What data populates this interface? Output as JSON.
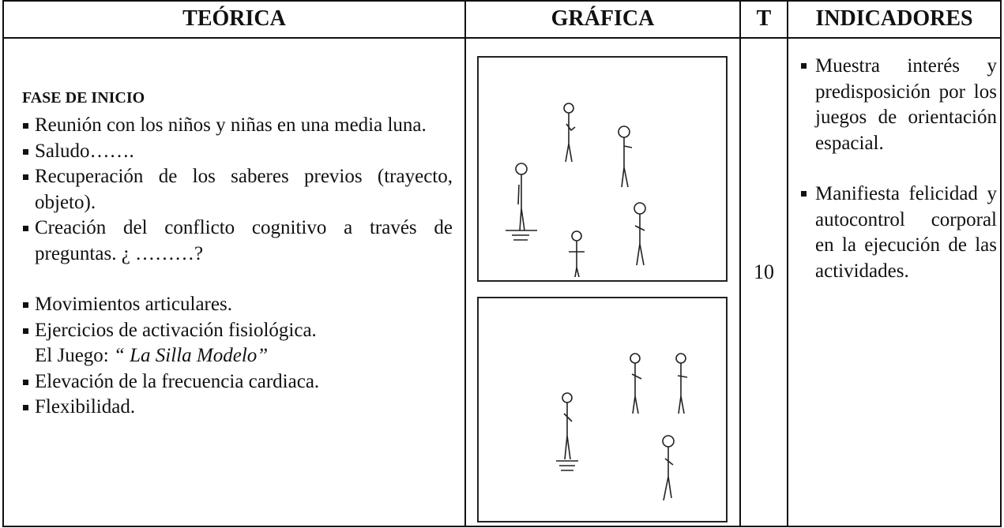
{
  "table": {
    "headers": [
      "TEÓRICA",
      "GRÁFICA",
      "T",
      "INDICADORES"
    ],
    "teorica": {
      "heading": "FASE DE INICIO",
      "items": [
        "Reunión con los niños y niñas  en una media luna.",
        "Saludo…….",
        "Recuperación de los saberes previos (trayecto, objeto).",
        "Creación del conflicto cognitivo a través de preguntas. ¿ ………?",
        "Movimientos articulares.",
        "Ejercicios de activación fisiológica."
      ],
      "juego_label": "El Juego:",
      "juego_name": "“ La Silla Modelo”",
      "items_after": [
        "Elevación de la frecuencia cardiaca.",
        "Flexibilidad."
      ]
    },
    "time": "10",
    "indicadores": [
      "Muestra interés y predisposición por los juegos de orientación espacial.",
      "Manifiesta felicidad y autocontrol corporal en la ejecución de las actividades."
    ]
  }
}
